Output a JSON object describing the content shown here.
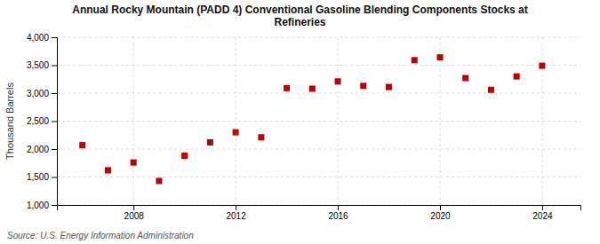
{
  "chart_data": {
    "type": "scatter",
    "title": "Annual Rocky Mountain (PADD 4) Conventional Gasoline Blending Components Stocks at\nRefineries",
    "ylabel": "Thousand Barrels",
    "source": "Source: U.S. Energy Information Administration",
    "x": [
      2006,
      2007,
      2008,
      2009,
      2010,
      2011,
      2012,
      2013,
      2014,
      2015,
      2016,
      2017,
      2018,
      2019,
      2020,
      2021,
      2022,
      2023,
      2024
    ],
    "values": [
      2070,
      1620,
      1760,
      1430,
      1880,
      2120,
      2300,
      2210,
      3090,
      3080,
      3210,
      3130,
      3110,
      3590,
      3640,
      3270,
      3060,
      3300,
      3490
    ],
    "color": "#c00000",
    "marker": "square",
    "grid": true,
    "ylim": [
      1000,
      4000
    ],
    "yticks": [
      {
        "value": 1000,
        "label": "1,000"
      },
      {
        "value": 1500,
        "label": "1,500"
      },
      {
        "value": 2000,
        "label": "2,000"
      },
      {
        "value": 2500,
        "label": "2,500"
      },
      {
        "value": 3000,
        "label": "3,000"
      },
      {
        "value": 3500,
        "label": "3,500"
      },
      {
        "value": 4000,
        "label": "4,000"
      }
    ],
    "xlim": [
      2005,
      2025.5
    ],
    "xticks": [
      2008,
      2012,
      2016,
      2020,
      2024
    ]
  }
}
